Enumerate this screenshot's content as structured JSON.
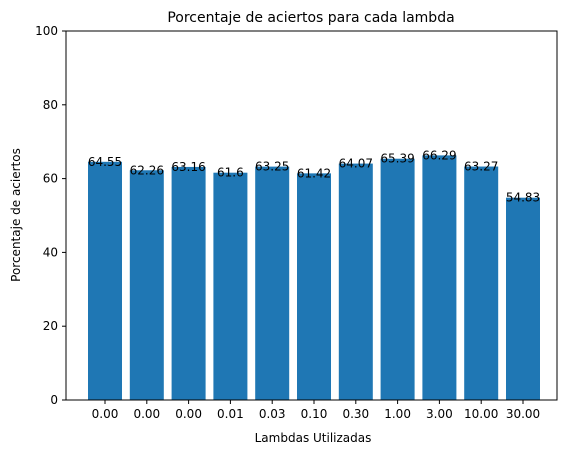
{
  "chart_data": {
    "type": "bar",
    "title": "Porcentaje de aciertos para cada lambda",
    "xlabel": "Lambdas Utilizadas",
    "ylabel": "Porcentaje de aciertos",
    "categories": [
      "0.00",
      "0.00",
      "0.00",
      "0.01",
      "0.03",
      "0.10",
      "0.30",
      "1.00",
      "3.00",
      "10.00",
      "30.00"
    ],
    "values": [
      64.55,
      62.26,
      63.16,
      61.6,
      63.25,
      61.42,
      64.07,
      65.39,
      66.29,
      63.27,
      54.83
    ],
    "data_labels": [
      "64.55",
      "62.26",
      "63.16",
      "61.6",
      "63.25",
      "61.42",
      "64.07",
      "65.39",
      "66.29",
      "63.27",
      "54.83"
    ],
    "ylim": [
      0,
      100
    ],
    "yticks": [
      0,
      20,
      40,
      60,
      80,
      100
    ],
    "ytick_labels": [
      "0",
      "20",
      "40",
      "60",
      "80",
      "100"
    ],
    "bar_color": "#1f77b4",
    "grid": false,
    "legend": "none"
  }
}
